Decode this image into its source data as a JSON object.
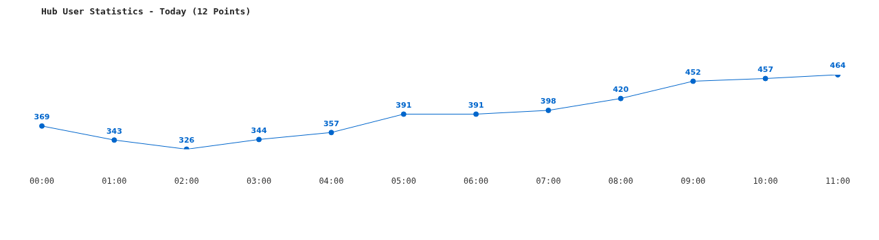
{
  "chart_data": {
    "type": "line",
    "title": "Hub User Statistics - Today (12 Points)",
    "categories": [
      "00:00",
      "01:00",
      "02:00",
      "03:00",
      "04:00",
      "05:00",
      "06:00",
      "07:00",
      "08:00",
      "09:00",
      "10:00",
      "11:00"
    ],
    "values": [
      369,
      343,
      326,
      344,
      357,
      391,
      391,
      398,
      420,
      452,
      457,
      464
    ],
    "color": "#0066cc",
    "marker": "circle",
    "data_labels": true,
    "grid": false,
    "legend": false
  }
}
